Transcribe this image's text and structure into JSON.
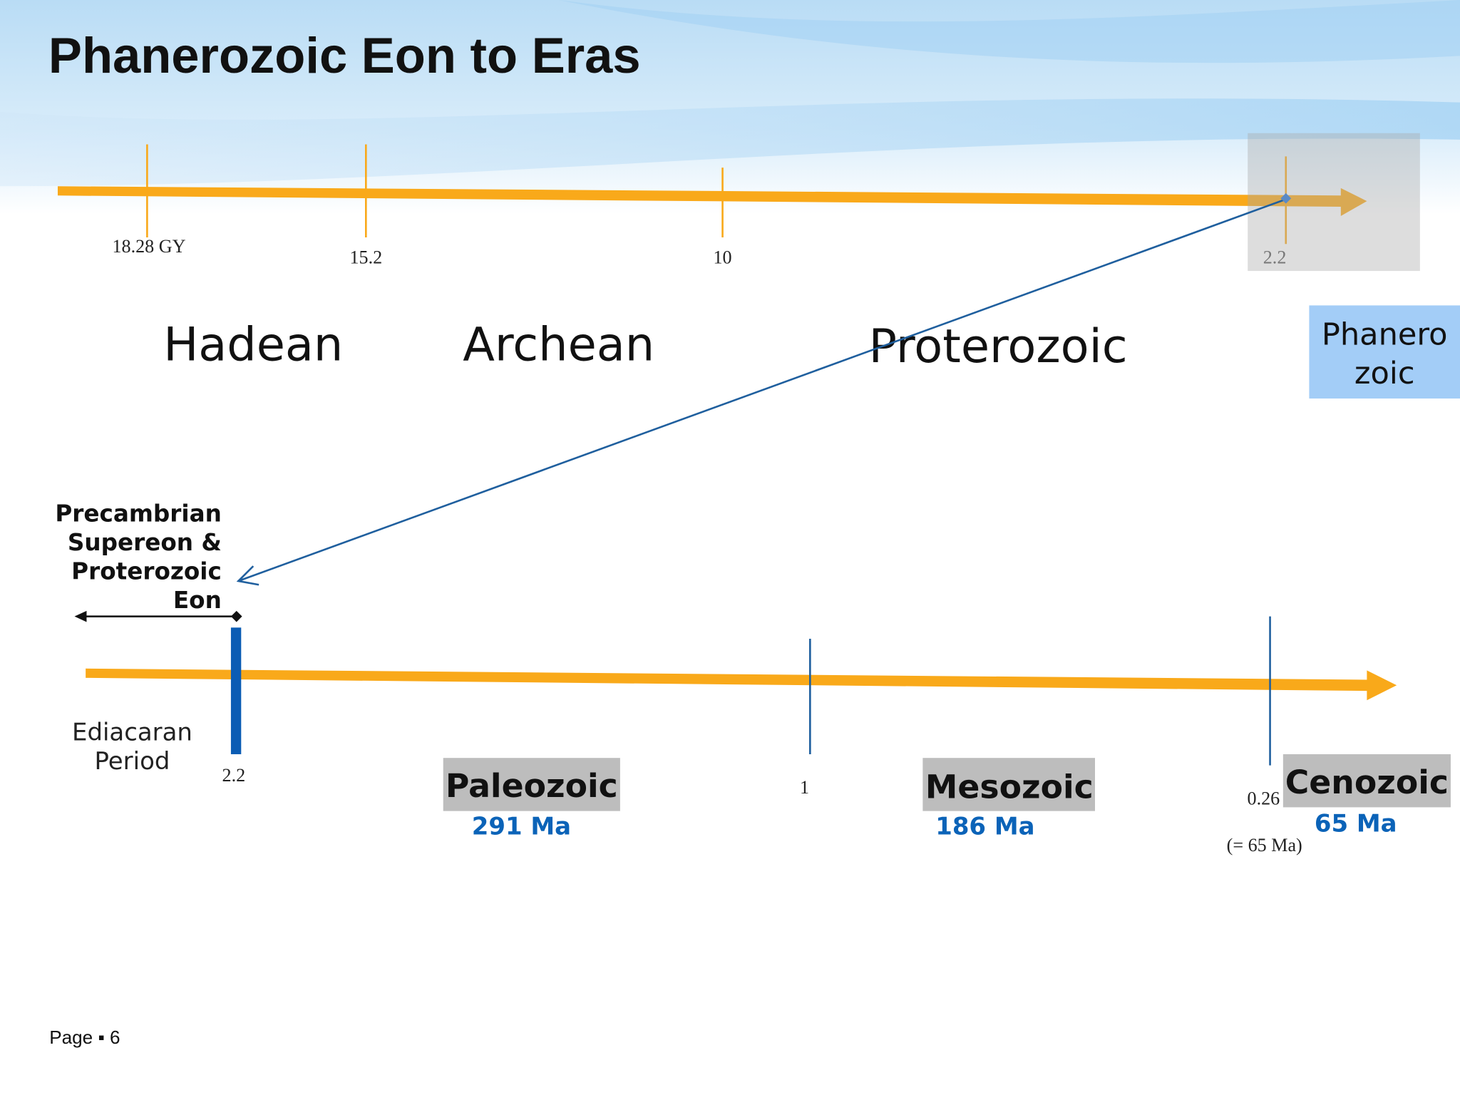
{
  "title": "Phanerozoic Eon to Eras",
  "top_timeline": {
    "ticks": [
      "18.28 GY",
      "15.2",
      "10",
      "2.2"
    ],
    "eons": [
      "Hadean",
      "Archean",
      "Proterozoic"
    ],
    "highlight": [
      "Phanero",
      "zoic"
    ]
  },
  "bottom_timeline": {
    "span_label": [
      "Precambrian",
      "Supereon &",
      "Proterozoic",
      "Eon"
    ],
    "period_label": [
      "Ediacaran",
      "Period"
    ],
    "ticks": [
      "2.2",
      "1",
      "0.26"
    ],
    "tick_note": "(= 65 Ma)",
    "eras": [
      {
        "name": "Paleozoic",
        "duration": "291 Ma"
      },
      {
        "name": "Mesozoic",
        "duration": "186 Ma"
      },
      {
        "name": "Cenozoic",
        "duration": "65 Ma"
      }
    ]
  },
  "footer": "Page ▪ 6"
}
